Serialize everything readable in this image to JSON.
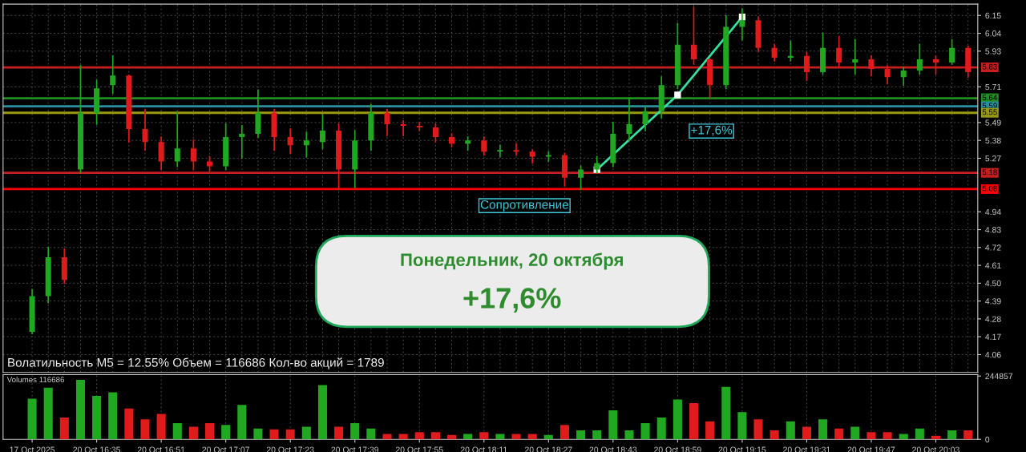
{
  "chart_data": [
    {
      "type": "candlestick",
      "categories": [
        null,
        null,
        null,
        null,
        null,
        null,
        null,
        null,
        null,
        null,
        null,
        null,
        null,
        null,
        null,
        null,
        null,
        null,
        null,
        null,
        null,
        null,
        null,
        null,
        null,
        null,
        null,
        null,
        null,
        null,
        null,
        null,
        null,
        null,
        null,
        null,
        null,
        null,
        null,
        null,
        null,
        null,
        null,
        null,
        null,
        null,
        null,
        null,
        null,
        null,
        null,
        null,
        null,
        null,
        null,
        null,
        null,
        null,
        null
      ],
      "ohlc": [
        [
          4.2,
          4.46,
          4.19,
          4.42
        ],
        [
          4.42,
          4.72,
          4.38,
          4.66
        ],
        [
          4.66,
          4.71,
          4.5,
          4.52
        ],
        [
          5.2,
          5.84,
          5.18,
          5.55
        ],
        [
          5.55,
          5.75,
          5.48,
          5.7
        ],
        [
          5.72,
          5.9,
          5.67,
          5.78
        ],
        [
          5.78,
          5.78,
          5.37,
          5.45
        ],
        [
          5.45,
          5.57,
          5.32,
          5.37
        ],
        [
          5.37,
          5.4,
          5.2,
          5.25
        ],
        [
          5.25,
          5.55,
          5.22,
          5.33
        ],
        [
          5.33,
          5.38,
          5.2,
          5.25
        ],
        [
          5.25,
          5.28,
          5.19,
          5.22
        ],
        [
          5.22,
          5.48,
          5.2,
          5.4
        ],
        [
          5.4,
          5.47,
          5.27,
          5.42
        ],
        [
          5.42,
          5.69,
          5.4,
          5.55
        ],
        [
          5.55,
          5.57,
          5.32,
          5.4
        ],
        [
          5.4,
          5.45,
          5.3,
          5.35
        ],
        [
          5.35,
          5.43,
          5.28,
          5.38
        ],
        [
          5.37,
          5.54,
          5.33,
          5.44
        ],
        [
          5.44,
          5.48,
          5.08,
          5.2
        ],
        [
          5.2,
          5.44,
          5.09,
          5.38
        ],
        [
          5.38,
          5.6,
          5.32,
          5.55
        ],
        [
          5.55,
          5.57,
          5.41,
          5.48
        ],
        [
          5.48,
          5.5,
          5.41,
          5.47
        ],
        [
          5.47,
          5.49,
          5.44,
          5.46
        ],
        [
          5.46,
          5.48,
          5.37,
          5.4
        ],
        [
          5.4,
          5.42,
          5.34,
          5.36
        ],
        [
          5.36,
          5.4,
          5.32,
          5.38
        ],
        [
          5.38,
          5.4,
          5.29,
          5.31
        ],
        [
          5.31,
          5.35,
          5.28,
          5.32
        ],
        [
          5.32,
          5.36,
          5.29,
          5.31
        ],
        [
          5.31,
          5.32,
          5.24,
          5.28
        ],
        [
          5.28,
          5.31,
          5.25,
          5.29
        ],
        [
          5.29,
          5.3,
          5.1,
          5.15
        ],
        [
          5.15,
          5.22,
          5.08,
          5.2
        ],
        [
          5.2,
          5.28,
          5.18,
          5.24
        ],
        [
          5.24,
          5.49,
          5.22,
          5.42
        ],
        [
          5.42,
          5.64,
          5.38,
          5.48
        ],
        [
          5.48,
          5.58,
          5.44,
          5.56
        ],
        [
          5.56,
          5.77,
          5.52,
          5.72
        ],
        [
          5.72,
          6.1,
          5.7,
          5.97
        ],
        [
          5.97,
          6.2,
          5.85,
          5.88
        ],
        [
          5.88,
          5.88,
          5.64,
          5.72
        ],
        [
          5.72,
          6.15,
          5.7,
          6.08
        ],
        [
          6.08,
          6.19,
          6.0,
          6.12
        ],
        [
          6.12,
          6.14,
          5.93,
          5.95
        ],
        [
          5.95,
          5.97,
          5.87,
          5.89
        ],
        [
          5.89,
          5.99,
          5.87,
          5.9
        ],
        [
          5.9,
          5.92,
          5.75,
          5.8
        ],
        [
          5.8,
          6.04,
          5.79,
          5.95
        ],
        [
          5.95,
          6.02,
          5.83,
          5.86
        ],
        [
          5.86,
          6.0,
          5.79,
          5.88
        ],
        [
          5.88,
          5.9,
          5.78,
          5.82
        ],
        [
          5.82,
          5.84,
          5.73,
          5.77
        ],
        [
          5.77,
          5.83,
          5.72,
          5.81
        ],
        [
          5.81,
          5.97,
          5.79,
          5.88
        ],
        [
          5.88,
          5.9,
          5.79,
          5.86
        ],
        [
          5.86,
          6.0,
          5.85,
          5.95
        ],
        [
          5.95,
          5.96,
          5.77,
          5.8
        ]
      ],
      "colors": [
        "#21a821",
        "#21a821",
        "#e01b1b",
        "#21a821",
        "#21a821",
        "#21a821",
        "#e01b1b",
        "#e01b1b",
        "#e01b1b",
        "#21a821",
        "#e01b1b",
        "#e01b1b",
        "#21a821",
        "#21a821",
        "#21a821",
        "#e01b1b",
        "#e01b1b",
        "#21a821",
        "#21a821",
        "#e01b1b",
        "#21a821",
        "#21a821",
        "#e01b1b",
        "#e01b1b",
        "#e01b1b",
        "#e01b1b",
        "#e01b1b",
        "#21a821",
        "#e01b1b",
        "#21a821",
        "#e01b1b",
        "#e01b1b",
        "#21a821",
        "#e01b1b",
        "#21a821",
        "#21a821",
        "#21a821",
        "#21a821",
        "#21a821",
        "#21a821",
        "#21a821",
        "#e01b1b",
        "#e01b1b",
        "#21a821",
        "#21a821",
        "#e01b1b",
        "#e01b1b",
        "#21a821",
        "#e01b1b",
        "#21a821",
        "#e01b1b",
        "#21a821",
        "#e01b1b",
        "#e01b1b",
        "#21a821",
        "#21a821",
        "#e01b1b",
        "#21a821",
        "#e01b1b"
      ],
      "series": [
        {
          "type": "line",
          "color": "#33e0a0",
          "marker": "square",
          "values": [
            null,
            null,
            null,
            null,
            null,
            null,
            null,
            null,
            null,
            null,
            null,
            null,
            null,
            null,
            null,
            null,
            null,
            null,
            null,
            null,
            null,
            null,
            null,
            null,
            null,
            null,
            null,
            null,
            null,
            null,
            null,
            null,
            null,
            null,
            null,
            5.2,
            null,
            null,
            null,
            null,
            5.66,
            null,
            null,
            null,
            6.14,
            null,
            null,
            null,
            null,
            null,
            null,
            null,
            null,
            null,
            null,
            null,
            null,
            null,
            null
          ]
        }
      ],
      "ylim": [
        3.95,
        6.22
      ],
      "yticks": [
        6.15,
        6.04,
        5.93,
        5.71,
        5.49,
        5.38,
        5.27,
        4.94,
        4.83,
        4.72,
        4.61,
        {
          "value": 4.5,
          "label": "4.50"
        },
        4.39,
        4.28,
        4.17,
        4.06
      ],
      "tick_labels": "y",
      "grid": true,
      "ref_lines": [
        {
          "axis": "y",
          "value": 5.83,
          "label": "5.83",
          "color": "#c81e1e"
        },
        {
          "axis": "y",
          "value": 5.64,
          "label": "5.64",
          "color": "#1f8f1f"
        },
        {
          "axis": "y",
          "value": 5.59,
          "label": "5.59",
          "color": "#2a8f9f"
        },
        {
          "axis": "y",
          "value": 5.55,
          "label": "5.55",
          "color": "#9a9a10"
        },
        {
          "axis": "y",
          "value": 5.18,
          "label": "5.18",
          "color": "#c81e1e"
        },
        {
          "axis": "y",
          "value": 5.08,
          "label": "5.08",
          "color": "#ff0000"
        }
      ],
      "annotations": [
        "Волатильность M5 = 12.55% Объем = 116686 Кол-во акций = 1789",
        "Сопротивление",
        "+17,6%",
        "Понедельник, 20 октября",
        "+17,6%"
      ]
    },
    {
      "type": "bar",
      "title": "Volumes 116686",
      "categories": [
        "17 Oct 2025",
        null,
        null,
        null,
        "20 Oct 16:35",
        null,
        null,
        null,
        "20 Oct 16:51",
        null,
        null,
        null,
        "20 Oct 17:07",
        null,
        null,
        null,
        "20 Oct 17:23",
        null,
        null,
        null,
        "20 Oct 17:39",
        null,
        null,
        null,
        "20 Oct 17:55",
        null,
        null,
        null,
        "20 Oct 18:11",
        null,
        null,
        null,
        "20 Oct 18:27",
        null,
        null,
        null,
        "20 Oct 18:43",
        null,
        null,
        null,
        "20 Oct 18:59",
        null,
        null,
        null,
        "20 Oct 19:15",
        null,
        null,
        null,
        "20 Oct 19:31",
        null,
        null,
        null,
        "20 Oct 19:47",
        null,
        null,
        null,
        "20 Oct 20:03",
        null,
        null
      ],
      "values": [
        157000,
        200000,
        84000,
        230000,
        168000,
        182000,
        119000,
        77000,
        98000,
        63000,
        49000,
        63000,
        56000,
        133000,
        42000,
        39000,
        39000,
        49000,
        210000,
        49000,
        63000,
        42000,
        21000,
        21000,
        28000,
        28000,
        17000,
        21000,
        28000,
        21000,
        21000,
        21000,
        17000,
        56000,
        35000,
        35000,
        112000,
        35000,
        63000,
        84000,
        154000,
        140000,
        70000,
        203000,
        105000,
        77000,
        35000,
        70000,
        49000,
        77000,
        42000,
        49000,
        28000,
        28000,
        21000,
        42000,
        14000,
        35000,
        35000
      ],
      "colors": [
        "#21a821",
        "#21a821",
        "#e01b1b",
        "#21a821",
        "#21a821",
        "#21a821",
        "#e01b1b",
        "#e01b1b",
        "#e01b1b",
        "#21a821",
        "#e01b1b",
        "#e01b1b",
        "#21a821",
        "#21a821",
        "#21a821",
        "#e01b1b",
        "#e01b1b",
        "#21a821",
        "#21a821",
        "#e01b1b",
        "#21a821",
        "#21a821",
        "#e01b1b",
        "#e01b1b",
        "#e01b1b",
        "#e01b1b",
        "#e01b1b",
        "#21a821",
        "#e01b1b",
        "#21a821",
        "#e01b1b",
        "#e01b1b",
        "#21a821",
        "#e01b1b",
        "#21a821",
        "#21a821",
        "#21a821",
        "#21a821",
        "#21a821",
        "#21a821",
        "#21a821",
        "#e01b1b",
        "#e01b1b",
        "#21a821",
        "#21a821",
        "#e01b1b",
        "#e01b1b",
        "#21a821",
        "#e01b1b",
        "#21a821",
        "#e01b1b",
        "#21a821",
        "#e01b1b",
        "#e01b1b",
        "#21a821",
        "#21a821",
        "#e01b1b",
        "#21a821",
        "#e01b1b"
      ],
      "ylim": [
        0,
        250000
      ],
      "yticks": [
        0,
        244857
      ],
      "grid": "x"
    }
  ]
}
